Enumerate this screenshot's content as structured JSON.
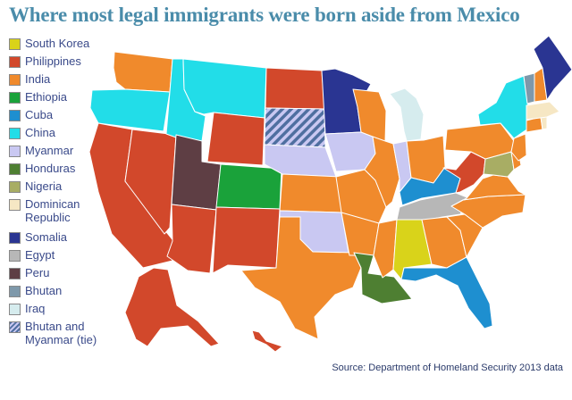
{
  "title": "Where most legal immigrants were born aside from Mexico",
  "source": "Source: Department of Homeland Security 2013 data",
  "legend": [
    {
      "label": "South Korea",
      "color": "#d9d31a"
    },
    {
      "label": "Philippines",
      "color": "#d2482b"
    },
    {
      "label": "India",
      "color": "#f08a2c"
    },
    {
      "label": "Ethiopia",
      "color": "#1aa23a"
    },
    {
      "label": "Cuba",
      "color": "#1e8fd0"
    },
    {
      "label": "China",
      "color": "#22dde8"
    },
    {
      "label": "Myanmar",
      "color": "#c9c8f2"
    },
    {
      "label": "Honduras",
      "color": "#4e7f32"
    },
    {
      "label": "Nigeria",
      "color": "#a8ad64"
    },
    {
      "label": "Dominican Republic",
      "color": "#f6e7c4"
    },
    {
      "label": "Somalia",
      "color": "#2a3592"
    },
    {
      "label": "Egypt",
      "color": "#b7b7b7"
    },
    {
      "label": "Peru",
      "color": "#5e3e44"
    },
    {
      "label": "Bhutan",
      "color": "#7e98aa"
    },
    {
      "label": "Iraq",
      "color": "#d6ecee"
    },
    {
      "label": "Bhutan and Myanmar (tie)",
      "color": "hatch"
    }
  ],
  "map_data": {
    "WA": "India",
    "OR": "China",
    "CA": "Philippines",
    "NV": "Philippines",
    "ID": "China",
    "MT": "China",
    "WY": "Philippines",
    "UT": "Peru",
    "AZ": "Philippines",
    "CO": "Ethiopia",
    "NM": "Philippines",
    "ND": "Philippines",
    "SD": "Bhutan and Myanmar (tie)",
    "NE": "Myanmar",
    "KS": "India",
    "OK": "Myanmar",
    "TX": "India",
    "MN": "Somalia",
    "IA": "Myanmar",
    "MO": "India",
    "AR": "India",
    "LA": "Honduras",
    "WI": "India",
    "IL": "India",
    "IN": "Myanmar",
    "MI": "Iraq",
    "OH": "India",
    "KY": "Cuba",
    "TN": "Egypt",
    "MS": "India",
    "AL": "South Korea",
    "GA": "India",
    "FL": "Cuba",
    "SC": "India",
    "NC": "India",
    "VA": "India",
    "WV": "Philippines",
    "MD": "Nigeria",
    "DE": "India",
    "PA": "India",
    "NJ": "India",
    "NY": "China",
    "CT": "India",
    "RI": "Dominican Republic",
    "MA": "Dominican Republic",
    "VT": "Bhutan",
    "NH": "India",
    "ME": "Somalia",
    "AK": "Philippines",
    "HI": "Philippines"
  }
}
